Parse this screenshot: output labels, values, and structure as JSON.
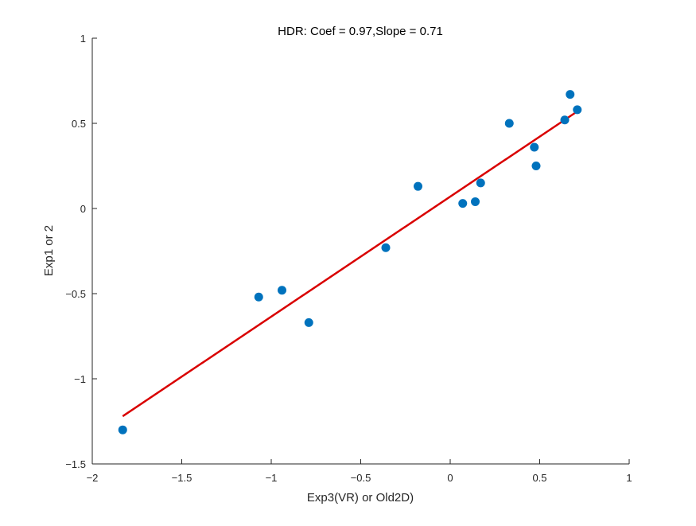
{
  "chart_data": {
    "type": "scatter",
    "title": "HDR: Coef = 0.97,Slope = 0.71",
    "xlabel": "Exp3(VR) or Old2D)",
    "ylabel": "Exp1 or 2",
    "xlim": [
      -2,
      1
    ],
    "ylim": [
      -1.5,
      1
    ],
    "xticks": [
      -2,
      -1.5,
      -1,
      -0.5,
      0,
      0.5,
      1
    ],
    "yticks": [
      -1.5,
      -1,
      -0.5,
      0,
      0.5,
      1
    ],
    "xtick_labels": [
      "−2",
      "−1.5",
      "−1",
      "−0.5",
      "0",
      "0.5",
      "1"
    ],
    "ytick_labels": [
      "−1.5",
      "−1",
      "−0.5",
      "0",
      "0.5",
      "1"
    ],
    "grid": false,
    "points": {
      "color": "#0072bd",
      "x": [
        -1.83,
        -1.07,
        -0.94,
        -0.79,
        -0.36,
        -0.18,
        0.07,
        0.14,
        0.17,
        0.33,
        0.47,
        0.48,
        0.64,
        0.67,
        0.71
      ],
      "y": [
        -1.3,
        -0.52,
        -0.48,
        -0.67,
        -0.23,
        0.13,
        0.03,
        0.04,
        0.15,
        0.5,
        0.36,
        0.25,
        0.52,
        0.67,
        0.58
      ]
    },
    "fit_line": {
      "color": "#d90000",
      "x": [
        -1.83,
        0.71
      ],
      "y": [
        -1.22,
        0.57
      ]
    }
  }
}
